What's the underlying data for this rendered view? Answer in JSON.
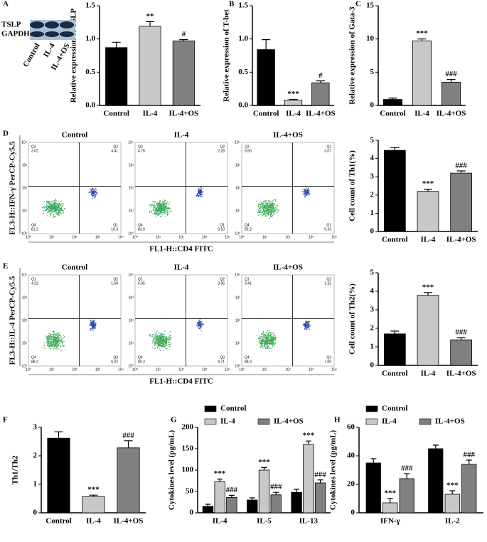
{
  "chart_data": [
    {
      "panel": "A",
      "type": "bar",
      "ylabel": "Relative expression of TSLP",
      "categories": [
        "Control",
        "IL-4",
        "IL-4+OS"
      ],
      "values": [
        0.87,
        1.19,
        0.97
      ],
      "errors": [
        0.08,
        0.07,
        0.02
      ],
      "annotations": [
        null,
        "**",
        "#"
      ],
      "colors": [
        "#000000",
        "#c8c8c8",
        "#808080"
      ],
      "ylim": [
        0,
        1.5
      ],
      "yticks": [
        {
          "value": 0,
          "label": "0.0"
        },
        {
          "value": 0.5,
          "label": "0.5"
        },
        {
          "value": 1,
          "label": "1.0"
        },
        {
          "value": 1.5,
          "label": "1.5"
        }
      ],
      "blot": {
        "bands": [
          "TSLP",
          "GAPDH"
        ],
        "lanes": [
          "Control",
          "IL-4",
          "IL-4+OS"
        ]
      }
    },
    {
      "panel": "B",
      "type": "bar",
      "ylabel": "Relative expression of T-bet",
      "categories": [
        "Control",
        "IL-4",
        "IL-4+OS"
      ],
      "values": [
        0.84,
        0.08,
        0.34
      ],
      "errors": [
        0.15,
        0.01,
        0.03
      ],
      "annotations": [
        null,
        "***",
        "#"
      ],
      "colors": [
        "#000000",
        "#c8c8c8",
        "#808080"
      ],
      "ylim": [
        0,
        1.5
      ],
      "yticks": [
        {
          "value": 0,
          "label": "0.0"
        },
        {
          "value": 0.5,
          "label": "0.5"
        },
        {
          "value": 1,
          "label": "1.0"
        },
        {
          "value": 1.5,
          "label": "1.5"
        }
      ]
    },
    {
      "panel": "C",
      "type": "bar",
      "ylabel": "Relative expression of Gata-3",
      "categories": [
        "Control",
        "IL-4",
        "IL-4+OS"
      ],
      "values": [
        0.9,
        9.7,
        3.5
      ],
      "errors": [
        0.2,
        0.3,
        0.4
      ],
      "annotations": [
        null,
        "***",
        "###"
      ],
      "colors": [
        "#000000",
        "#c8c8c8",
        "#808080"
      ],
      "ylim": [
        0,
        15
      ],
      "yticks": [
        0,
        5,
        10,
        15
      ]
    },
    {
      "panel": "D",
      "type": "flow",
      "xlabel": "FL1-H::CD4 FITC",
      "ylabel": "FL3-H::IFN-γ PerCP-Cy5.5",
      "log_ticks": [
        "10⁰",
        "10¹",
        "10²",
        "10³",
        "10⁴"
      ],
      "plots": [
        {
          "title": "Control",
          "quadrants": [
            {
              "name": "Q3",
              "label": "3.02"
            },
            {
              "name": "Q2",
              "label": "4.41"
            },
            {
              "name": "Q4",
              "label": "81.2"
            },
            {
              "name": "Q1",
              "label": "10.3"
            }
          ]
        },
        {
          "title": "IL-4",
          "quadrants": [
            {
              "name": "Q3",
              "label": "4.75"
            },
            {
              "name": "Q2",
              "label": "2.28"
            },
            {
              "name": "Q4",
              "label": "83.9"
            },
            {
              "name": "Q1",
              "label": "9.10"
            }
          ]
        },
        {
          "title": "IL-4+OS",
          "quadrants": [
            {
              "name": "Q3",
              "label": "5.50"
            },
            {
              "name": "Q2",
              "label": "3.07"
            },
            {
              "name": "Q4",
              "label": "82.3"
            },
            {
              "name": "Q1",
              "label": "9.10"
            }
          ]
        }
      ]
    },
    {
      "type": "bar",
      "ylabel": "Cell count of Th1(%)",
      "categories": [
        "Control",
        "IL-4",
        "IL-4+OS"
      ],
      "values": [
        4.45,
        2.2,
        3.2
      ],
      "errors": [
        0.15,
        0.12,
        0.12
      ],
      "annotations": [
        null,
        "***",
        "###"
      ],
      "colors": [
        "#000000",
        "#c8c8c8",
        "#808080"
      ],
      "ylim": [
        0,
        5
      ],
      "yticks": [
        0,
        1,
        2,
        3,
        4,
        5
      ]
    },
    {
      "panel": "E",
      "type": "flow",
      "xlabel": "FL1-H::CD4 FITC",
      "ylabel": "FL3-H::IL-4 PerCP-Cy5.5",
      "log_ticks": [
        "10⁰",
        "10¹",
        "10²",
        "10³",
        "10⁴"
      ],
      "plots": [
        {
          "title": "Control",
          "quadrants": [
            {
              "name": "Q1",
              "label": "4.23"
            },
            {
              "name": "Q2",
              "label": "1.69"
            },
            {
              "name": "Q4",
              "label": "88.2"
            },
            {
              "name": "Q3",
              "label": "6.02"
            }
          ]
        },
        {
          "title": "IL-4",
          "quadrants": [
            {
              "name": "Q1",
              "label": "6.05"
            },
            {
              "name": "Q2",
              "label": "3.96"
            },
            {
              "name": "Q4",
              "label": "80.3"
            },
            {
              "name": "Q3",
              "label": "9.71"
            }
          ]
        },
        {
          "title": "IL-4+OS",
          "quadrants": [
            {
              "name": "Q1",
              "label": "3.41"
            },
            {
              "name": "Q2",
              "label": "1.32"
            },
            {
              "name": "Q4",
              "label": "88.3"
            },
            {
              "name": "Q3",
              "label": "7.00"
            }
          ]
        }
      ]
    },
    {
      "type": "bar",
      "ylabel": "Cell count of Th2(%)",
      "categories": [
        "Control",
        "IL-4",
        "IL-4+OS"
      ],
      "values": [
        1.7,
        3.78,
        1.38
      ],
      "errors": [
        0.15,
        0.15,
        0.12
      ],
      "annotations": [
        null,
        "***",
        "###"
      ],
      "colors": [
        "#000000",
        "#c8c8c8",
        "#808080"
      ],
      "ylim": [
        0,
        5
      ],
      "yticks": [
        0,
        1,
        2,
        3,
        4,
        5
      ]
    },
    {
      "panel": "F",
      "type": "bar",
      "ylabel": "Th1/Th2",
      "categories": [
        "Control",
        "IL-4",
        "IL-4+OS"
      ],
      "values": [
        2.62,
        0.57,
        2.28
      ],
      "errors": [
        0.22,
        0.05,
        0.25
      ],
      "annotations": [
        null,
        "***",
        "###"
      ],
      "colors": [
        "#000000",
        "#c8c8c8",
        "#808080"
      ],
      "ylim": [
        0,
        3
      ],
      "yticks": [
        0,
        1,
        2,
        3
      ]
    },
    {
      "panel": "G",
      "type": "grouped-bar",
      "ylabel": "Cytokines level (pg/mL)",
      "categories": [
        "IL-4",
        "IL-5",
        "IL-13"
      ],
      "series": [
        {
          "name": "Control",
          "color": "#000000",
          "values": [
            15,
            30,
            48
          ],
          "errors": [
            5,
            5,
            7
          ],
          "annotations": [
            null,
            null,
            null
          ]
        },
        {
          "name": "IL-4",
          "color": "#c8c8c8",
          "values": [
            73,
            100,
            160
          ],
          "errors": [
            6,
            6,
            8
          ],
          "annotations": [
            "***",
            "***",
            "***"
          ]
        },
        {
          "name": "IL-4+OS",
          "color": "#808080",
          "values": [
            36,
            42,
            70
          ],
          "errors": [
            5,
            6,
            7
          ],
          "annotations": [
            "###",
            "###",
            "###"
          ]
        }
      ],
      "ylim": [
        0,
        200
      ],
      "yticks": [
        0,
        50,
        100,
        150,
        200
      ]
    },
    {
      "panel": "H",
      "type": "grouped-bar",
      "ylabel": "Cytokines level (pg/mL)",
      "categories": [
        "IFN-γ",
        "IL-2"
      ],
      "series": [
        {
          "name": "Control",
          "color": "#000000",
          "values": [
            35,
            45
          ],
          "errors": [
            3,
            2.5
          ],
          "annotations": [
            null,
            null
          ]
        },
        {
          "name": "IL-4",
          "color": "#c8c8c8",
          "values": [
            7,
            13
          ],
          "errors": [
            3,
            2.5
          ],
          "annotations": [
            "***",
            "***"
          ]
        },
        {
          "name": "IL-4+OS",
          "color": "#808080",
          "values": [
            24,
            34
          ],
          "errors": [
            3.5,
            3
          ],
          "annotations": [
            "###",
            "###"
          ]
        }
      ],
      "ylim": [
        0,
        60
      ],
      "yticks": [
        0,
        20,
        40,
        60
      ]
    }
  ]
}
